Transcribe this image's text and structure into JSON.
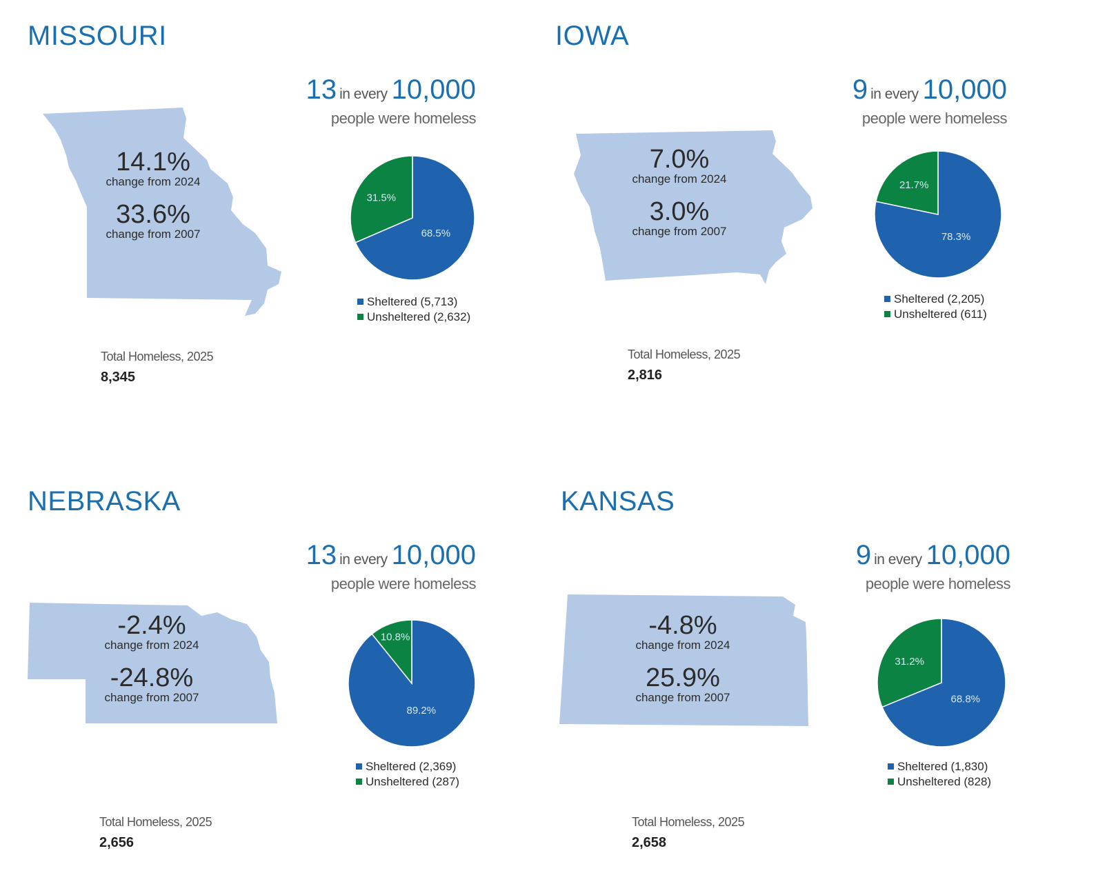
{
  "colors": {
    "title": "#1a6fb0",
    "sheltered": "#1f62ae",
    "unsheltered": "#0b8443",
    "map": "#b4c9e6"
  },
  "states": [
    {
      "name": "MISSOURI",
      "shape": "missouri",
      "rate_count": "13",
      "rate_mid": "in every",
      "rate_base": "10,000",
      "rate_text": "people were homeless",
      "change_2024": "14.1%",
      "change_2024_label": "change from 2024",
      "change_2007": "33.6%",
      "change_2007_label": "change from 2007",
      "sheltered_legend": "Sheltered (5,713)",
      "unsheltered_legend": "Unsheltered (2,632)",
      "sheltered_pct_label": "68.5%",
      "unsheltered_pct_label": "31.5%",
      "total_label": "Total Homeless, 2025",
      "total_value": "8,345"
    },
    {
      "name": "IOWA",
      "shape": "iowa",
      "rate_count": "9",
      "rate_mid": "in every",
      "rate_base": "10,000",
      "rate_text": "people were homeless",
      "change_2024": "7.0%",
      "change_2024_label": "change from 2024",
      "change_2007": "3.0%",
      "change_2007_label": "change from 2007",
      "sheltered_legend": "Sheltered (2,205)",
      "unsheltered_legend": "Unsheltered (611)",
      "sheltered_pct_label": "78.3%",
      "unsheltered_pct_label": "21.7%",
      "total_label": "Total Homeless, 2025",
      "total_value": "2,816"
    },
    {
      "name": "NEBRASKA",
      "shape": "nebraska",
      "rate_count": "13",
      "rate_mid": "in every",
      "rate_base": "10,000",
      "rate_text": "people were homeless",
      "change_2024": "-2.4%",
      "change_2024_label": "change from 2024",
      "change_2007": "-24.8%",
      "change_2007_label": "change from 2007",
      "sheltered_legend": "Sheltered (2,369)",
      "unsheltered_legend": "Unsheltered (287)",
      "sheltered_pct_label": "89.2%",
      "unsheltered_pct_label": "10.8%",
      "total_label": "Total Homeless, 2025",
      "total_value": "2,656"
    },
    {
      "name": "KANSAS",
      "shape": "kansas",
      "rate_count": "9",
      "rate_mid": "in every",
      "rate_base": "10,000",
      "rate_text": "people were homeless",
      "change_2024": "-4.8%",
      "change_2024_label": "change from 2024",
      "change_2007": "25.9%",
      "change_2007_label": "change from 2007",
      "sheltered_legend": "Sheltered (1,830)",
      "unsheltered_legend": "Unsheltered (828)",
      "sheltered_pct_label": "68.8%",
      "unsheltered_pct_label": "31.2%",
      "total_label": "Total Homeless, 2025",
      "total_value": "2,658"
    }
  ],
  "chart_data": [
    {
      "type": "pie",
      "title": "MISSOURI",
      "categories": [
        "Sheltered",
        "Unsheltered"
      ],
      "values": [
        68.5,
        31.5
      ],
      "counts": [
        5713,
        2632
      ],
      "colors": [
        "#1f62ae",
        "#0b8443"
      ],
      "legend_position": "bottom"
    },
    {
      "type": "pie",
      "title": "IOWA",
      "categories": [
        "Sheltered",
        "Unsheltered"
      ],
      "values": [
        78.3,
        21.7
      ],
      "counts": [
        2205,
        611
      ],
      "colors": [
        "#1f62ae",
        "#0b8443"
      ],
      "legend_position": "bottom"
    },
    {
      "type": "pie",
      "title": "NEBRASKA",
      "categories": [
        "Sheltered",
        "Unsheltered"
      ],
      "values": [
        89.2,
        10.8
      ],
      "counts": [
        2369,
        287
      ],
      "colors": [
        "#1f62ae",
        "#0b8443"
      ],
      "legend_position": "bottom"
    },
    {
      "type": "pie",
      "title": "KANSAS",
      "categories": [
        "Sheltered",
        "Unsheltered"
      ],
      "values": [
        68.8,
        31.2
      ],
      "counts": [
        1830,
        828
      ],
      "colors": [
        "#1f62ae",
        "#0b8443"
      ],
      "legend_position": "bottom"
    }
  ]
}
